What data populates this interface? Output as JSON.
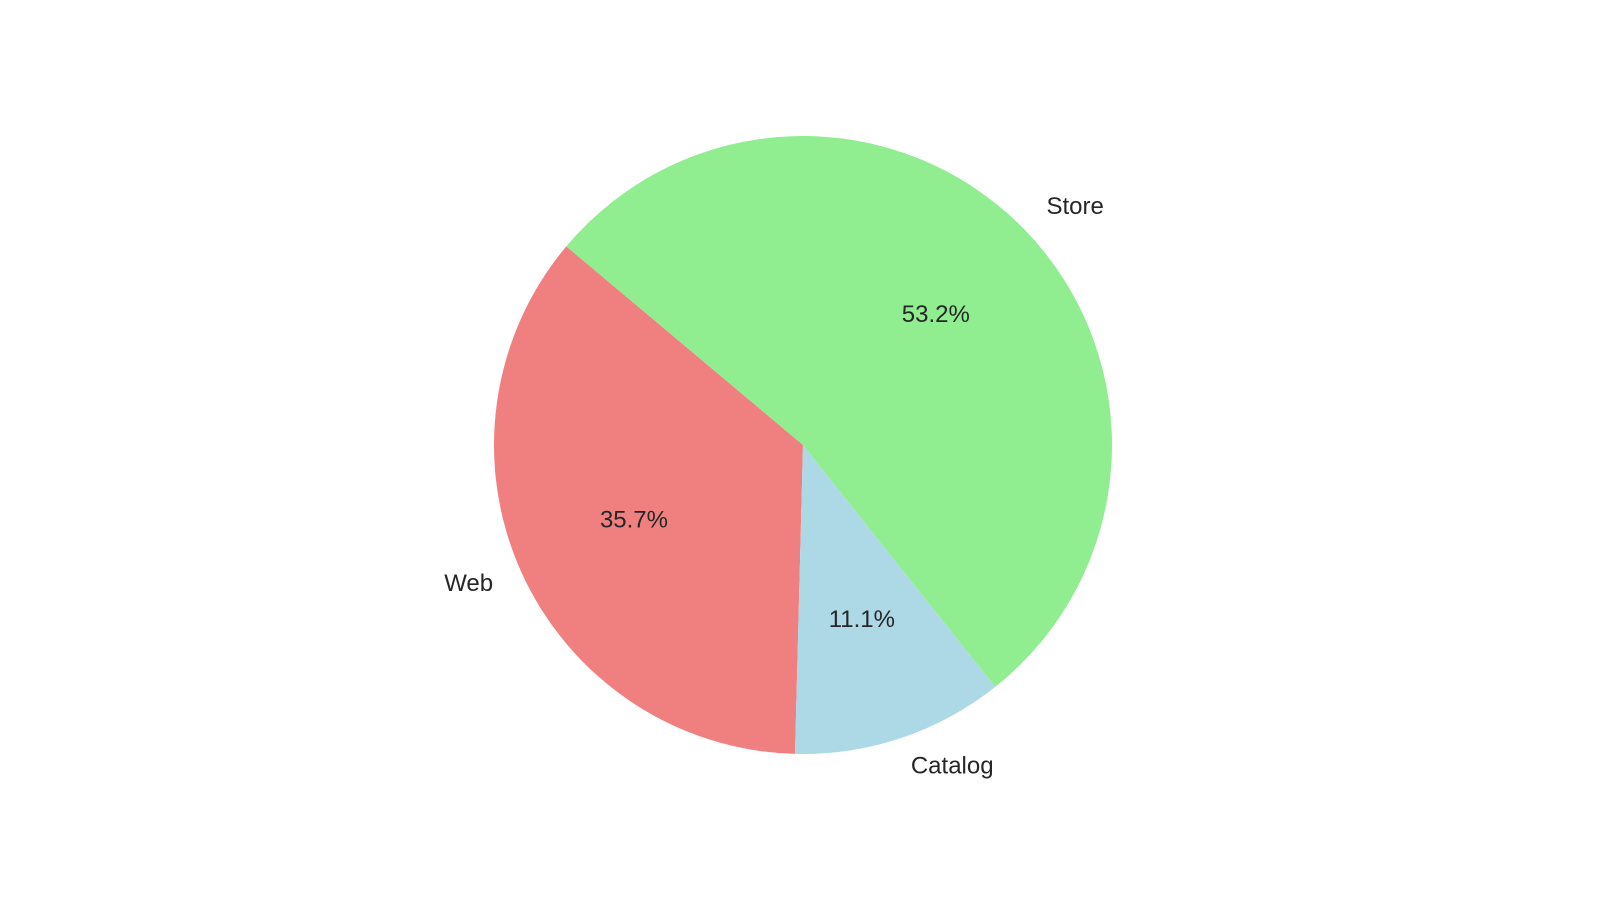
{
  "chart_data": {
    "type": "pie",
    "title": "",
    "start_angle_deg": 140,
    "direction": "counterclockwise",
    "slices": [
      {
        "label": "Web",
        "value": 35.7,
        "pct_text": "35.7%",
        "color": "#f08080"
      },
      {
        "label": "Catalog",
        "value": 11.1,
        "pct_text": "11.1%",
        "color": "#add8e6"
      },
      {
        "label": "Store",
        "value": 53.2,
        "pct_text": "53.2%",
        "color": "#90ee90"
      }
    ],
    "legend": "none"
  }
}
